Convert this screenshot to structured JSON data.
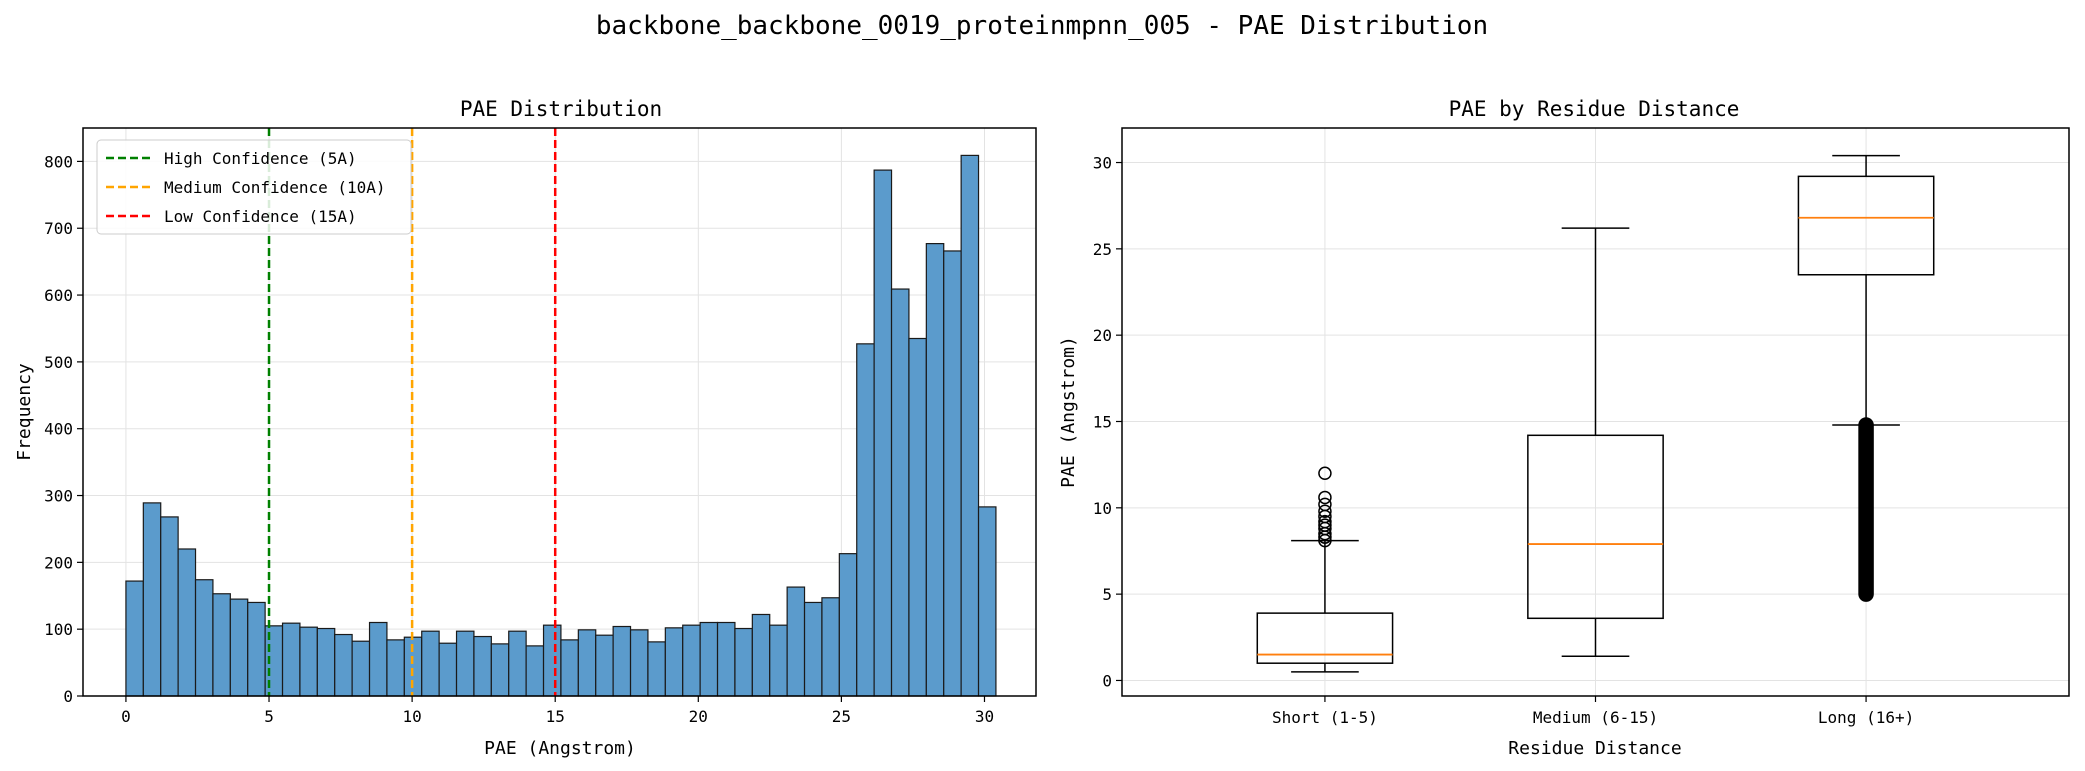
{
  "suptitle": "backbone_backbone_0019_proteinmpnn_005 - PAE Distribution",
  "chart_data": [
    {
      "type": "bar",
      "title": "PAE Distribution",
      "xlabel": "PAE (Angstrom)",
      "ylabel": "Frequency",
      "xlim": [
        -1.5,
        31.8
      ],
      "ylim": [
        0,
        850
      ],
      "xticks": [
        0,
        5,
        10,
        15,
        20,
        25,
        30
      ],
      "yticks": [
        0,
        100,
        200,
        300,
        400,
        500,
        600,
        700,
        800
      ],
      "grid": true,
      "bin_start": 0,
      "bin_width": 0.608,
      "counts": [
        172,
        289,
        268,
        220,
        174,
        153,
        145,
        140,
        105,
        109,
        103,
        101,
        92,
        82,
        110,
        84,
        88,
        97,
        79,
        97,
        89,
        78,
        97,
        75,
        106,
        84,
        99,
        91,
        104,
        99,
        81,
        102,
        106,
        110,
        110,
        101,
        122,
        106,
        163,
        140,
        147,
        213,
        527,
        787,
        609,
        535,
        677,
        666,
        809,
        283
      ],
      "bar_color": "#5b9bcc",
      "threshold_lines": [
        {
          "label": "High Confidence (5A)",
          "x": 5,
          "color": "#008000"
        },
        {
          "label": "Medium Confidence (10A)",
          "x": 10,
          "color": "#ffa500"
        },
        {
          "label": "Low Confidence (15A)",
          "x": 15,
          "color": "#ff0000"
        }
      ],
      "legend_position": "upper-left"
    },
    {
      "type": "box",
      "title": "PAE by Residue Distance",
      "xlabel": "Residue Distance",
      "ylabel": "PAE (Angstrom)",
      "ylim": [
        -0.9,
        32.0
      ],
      "yticks": [
        0,
        5,
        10,
        15,
        20,
        25,
        30
      ],
      "grid": true,
      "median_color": "#ff7f0e",
      "categories": [
        "Short (1-5)",
        "Medium (6-15)",
        "Long (16+)"
      ],
      "boxes": [
        {
          "whisker_low": 0.5,
          "q1": 1.0,
          "median": 1.5,
          "q3": 3.9,
          "whisker_high": 8.1,
          "outliers": [
            8.1,
            8.3,
            8.5,
            8.8,
            9.0,
            9.2,
            9.5,
            9.8,
            10.2,
            10.6,
            12.0
          ]
        },
        {
          "whisker_low": 1.4,
          "q1": 3.6,
          "median": 7.9,
          "q3": 14.2,
          "whisker_high": 26.2,
          "outliers": []
        },
        {
          "whisker_low": 14.8,
          "q1": 23.5,
          "median": 26.8,
          "q3": 29.2,
          "whisker_high": 30.4,
          "outlier_range": [
            5.0,
            14.8
          ]
        }
      ]
    }
  ]
}
